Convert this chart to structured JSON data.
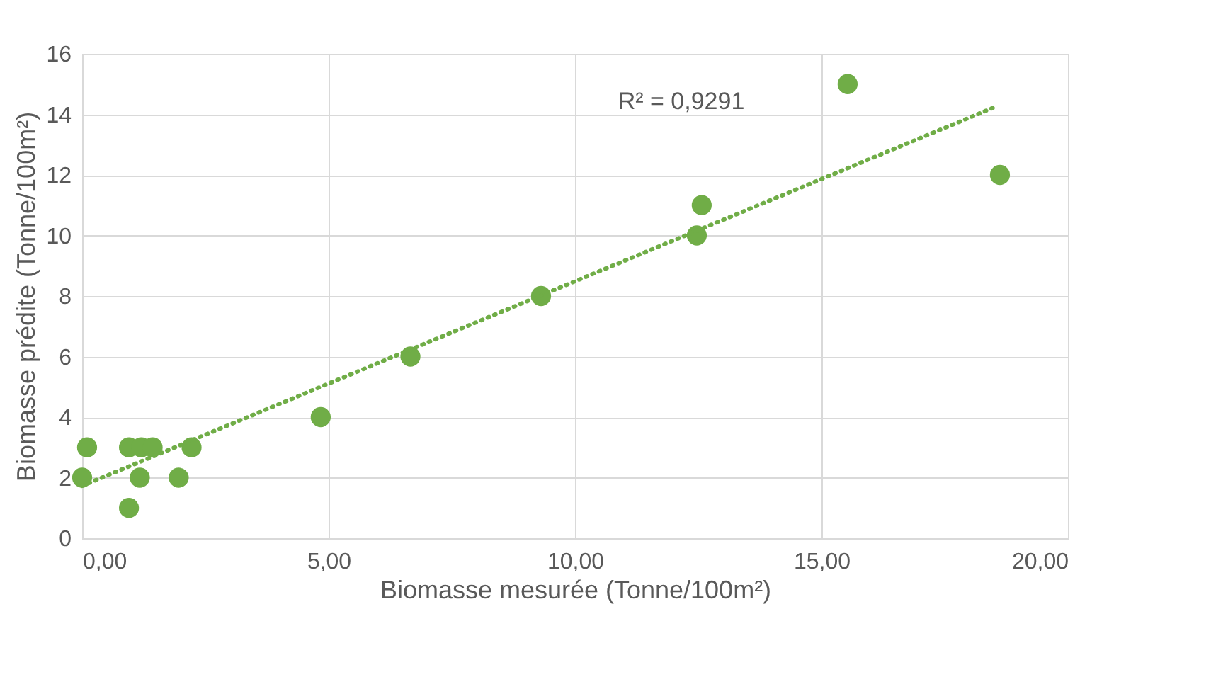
{
  "chart_data": {
    "type": "scatter",
    "xlabel": "Biomasse mesurée (Tonne/100m²)",
    "ylabel": "Biomasse prédite (Tonne/100m²)",
    "xlim": [
      0,
      20
    ],
    "ylim": [
      0,
      16
    ],
    "xticks": [
      {
        "value": 0,
        "label": "0,00"
      },
      {
        "value": 5,
        "label": "5,00"
      },
      {
        "value": 10,
        "label": "10,00"
      },
      {
        "value": 15,
        "label": "15,00"
      },
      {
        "value": 20,
        "label": "20,00"
      }
    ],
    "yticks": [
      0,
      2,
      4,
      6,
      8,
      10,
      12,
      14,
      16
    ],
    "grid": true,
    "series": [
      {
        "marker": "circle",
        "color": "#70ad47",
        "x": [
          0.0,
          0.1,
          0.95,
          1.2,
          1.43,
          0.95,
          1.17,
          1.96,
          2.22,
          4.84,
          6.66,
          9.31,
          12.47,
          12.57,
          15.53,
          18.62
        ],
        "values": [
          2,
          3,
          3,
          3,
          3,
          1,
          2,
          2,
          3,
          4,
          6,
          8,
          10,
          11,
          15,
          12
        ]
      },
      {
        "type": "line",
        "color": "#70ad47",
        "line_style": "dotted",
        "x": [
          0.0,
          18.53
        ],
        "values": [
          1.73,
          14.25
        ]
      }
    ],
    "annotations": [
      "R² = 0,9291"
    ]
  }
}
